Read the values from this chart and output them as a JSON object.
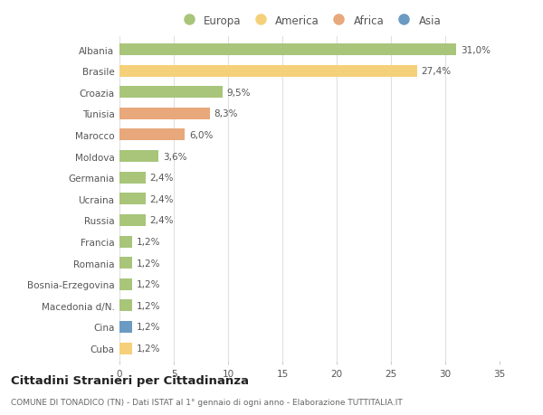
{
  "categories": [
    "Albania",
    "Brasile",
    "Croazia",
    "Tunisia",
    "Marocco",
    "Moldova",
    "Germania",
    "Ucraina",
    "Russia",
    "Francia",
    "Romania",
    "Bosnia-Erzegovina",
    "Macedonia d/N.",
    "Cina",
    "Cuba"
  ],
  "values": [
    31.0,
    27.4,
    9.5,
    8.3,
    6.0,
    3.6,
    2.4,
    2.4,
    2.4,
    1.2,
    1.2,
    1.2,
    1.2,
    1.2,
    1.2
  ],
  "labels": [
    "31,0%",
    "27,4%",
    "9,5%",
    "8,3%",
    "6,0%",
    "3,6%",
    "2,4%",
    "2,4%",
    "2,4%",
    "1,2%",
    "1,2%",
    "1,2%",
    "1,2%",
    "1,2%",
    "1,2%"
  ],
  "continents": [
    "Europa",
    "America",
    "Europa",
    "Africa",
    "Africa",
    "Europa",
    "Europa",
    "Europa",
    "Europa",
    "Europa",
    "Europa",
    "Europa",
    "Europa",
    "Asia",
    "America"
  ],
  "continent_colors": {
    "Europa": "#a8c57a",
    "America": "#f5d07a",
    "Africa": "#e8a87c",
    "Asia": "#6b9bc3"
  },
  "legend_order": [
    "Europa",
    "America",
    "Africa",
    "Asia"
  ],
  "xlim": [
    0,
    35
  ],
  "xticks": [
    0,
    5,
    10,
    15,
    20,
    25,
    30,
    35
  ],
  "title": "Cittadini Stranieri per Cittadinanza",
  "subtitle": "COMUNE DI TONADICO (TN) - Dati ISTAT al 1° gennaio di ogni anno - Elaborazione TUTTITALIA.IT",
  "background_color": "#ffffff",
  "grid_color": "#e0e0e0",
  "bar_height": 0.55,
  "label_fontsize": 7.5,
  "tick_fontsize": 7.5
}
